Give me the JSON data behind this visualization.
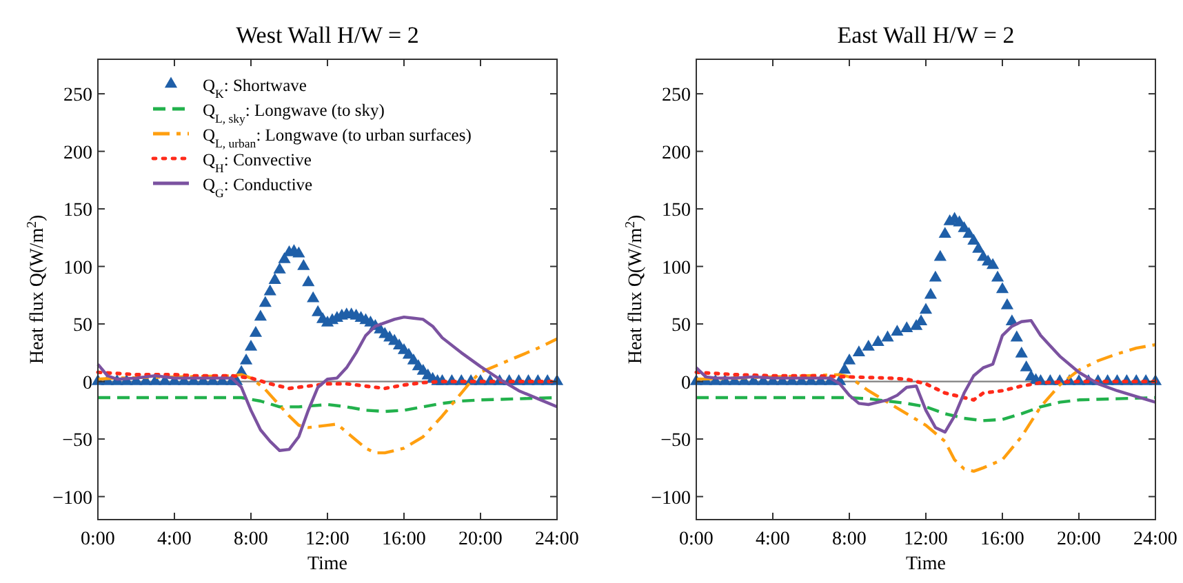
{
  "chart_data": [
    {
      "type": "line",
      "title": "West Wall H/W = 2",
      "xlabel": "Time",
      "ylabel": "Heat flux Q(W/m$^{2}$)",
      "xlim": [
        0,
        24
      ],
      "ylim": [
        -120,
        280
      ],
      "xticks": [
        {
          "value": 0,
          "label": "0:00"
        },
        {
          "value": 4,
          "label": "4:00"
        },
        {
          "value": 8,
          "label": "8:00"
        },
        {
          "value": 12,
          "label": "12:00"
        },
        {
          "value": 16,
          "label": "16:00"
        },
        {
          "value": 20,
          "label": "20:00"
        },
        {
          "value": 24,
          "label": "24:00"
        }
      ],
      "yticks": [
        -100,
        -50,
        0,
        50,
        100,
        150,
        200,
        250
      ],
      "grid": false,
      "legend": "top",
      "ref_lines": [
        {
          "axis": "y",
          "value": 0,
          "color": "#808080"
        }
      ],
      "series": [
        {
          "name": "Q$_{K}$: Shortwave",
          "type": "scatter",
          "marker": "triangle",
          "color": "#1f5fa8",
          "x": [
            0,
            0.5,
            1,
            1.5,
            2,
            2.5,
            3,
            3.5,
            4,
            4.5,
            5,
            5.5,
            6,
            6.5,
            7,
            7.25,
            7.5,
            7.75,
            8,
            8.25,
            8.5,
            8.75,
            9,
            9.25,
            9.5,
            9.75,
            10,
            10.25,
            10.5,
            10.75,
            11,
            11.25,
            11.5,
            11.75,
            12,
            12.25,
            12.5,
            12.75,
            13,
            13.25,
            13.5,
            13.75,
            14,
            14.25,
            14.5,
            14.75,
            15,
            15.25,
            15.5,
            15.75,
            16,
            16.25,
            16.5,
            16.75,
            17,
            17.25,
            17.5,
            17.75,
            18,
            18.5,
            19,
            19.5,
            20,
            20.5,
            21,
            21.5,
            22,
            22.5,
            23,
            23.5,
            24
          ],
          "values": [
            0,
            0,
            0,
            0,
            0,
            0,
            0,
            0,
            0,
            0,
            0,
            0,
            0,
            0,
            0,
            0,
            8,
            18,
            30,
            42,
            56,
            68,
            78,
            88,
            97,
            106,
            112,
            113,
            111,
            100,
            86,
            72,
            60,
            54,
            51,
            53,
            55,
            57,
            58,
            58,
            57,
            55,
            53,
            51,
            48,
            45,
            41,
            38,
            35,
            31,
            27,
            23,
            18,
            13,
            9,
            5,
            2,
            0,
            0,
            0,
            0,
            0,
            0,
            0,
            0,
            0,
            0,
            0,
            0,
            0,
            0
          ]
        },
        {
          "name": "Q$_{L, sky}$: Longwave (to sky)",
          "line_style": "dashed",
          "color": "#22b14c",
          "x": [
            0,
            7.5,
            8.5,
            9.5,
            10.5,
            12,
            13,
            14,
            15,
            16,
            17,
            18,
            19,
            20,
            22,
            24
          ],
          "values": [
            -14,
            -14,
            -17,
            -22,
            -22,
            -20,
            -22,
            -25,
            -26,
            -25,
            -22,
            -19,
            -17,
            -16,
            -15,
            -14
          ]
        },
        {
          "name": "Q$_{L, urban}$: Longwave (to urban surfaces)",
          "line_style": "dashdot",
          "color": "#ff9f0f",
          "x": [
            0,
            1,
            4,
            7,
            7.5,
            8,
            8.7,
            10,
            10.5,
            11,
            12,
            12.5,
            13,
            14,
            14.5,
            15,
            16,
            17,
            18,
            19,
            19.5,
            20,
            21,
            22,
            23,
            24
          ],
          "values": [
            2,
            3,
            4,
            5,
            6,
            3,
            -6,
            -30,
            -38,
            -40,
            -38,
            -37,
            -44,
            -58,
            -62,
            -62,
            -58,
            -48,
            -30,
            -10,
            0,
            8,
            15,
            22,
            29,
            37
          ]
        },
        {
          "name": "Q$_{H}$: Convective",
          "line_style": "dotted",
          "color": "#ff2a1a",
          "x": [
            0,
            1,
            2,
            3,
            4,
            5,
            6,
            7,
            8,
            9,
            10,
            11,
            12,
            13,
            14,
            15,
            16,
            17,
            18,
            20,
            24
          ],
          "values": [
            8,
            7,
            6,
            6,
            6,
            5,
            5,
            5,
            3,
            -2,
            -6,
            -4,
            -2,
            -2,
            -4,
            -6,
            -3,
            -1,
            0,
            0,
            0
          ]
        },
        {
          "name": "Q$_{G}$: Conductive",
          "line_style": "solid",
          "color": "#7b52a0",
          "x": [
            0,
            0.5,
            1,
            2,
            3,
            4,
            5,
            6,
            7,
            7.5,
            8,
            8.5,
            9,
            9.5,
            10,
            10.5,
            11,
            11.5,
            12,
            12.5,
            13,
            13.5,
            14,
            14.5,
            15,
            15.5,
            16,
            16.5,
            17,
            17.5,
            18,
            19,
            20,
            21,
            22,
            23,
            24
          ],
          "values": [
            15,
            5,
            2,
            3,
            5,
            3,
            3,
            3,
            3,
            -5,
            -25,
            -42,
            -52,
            -60,
            -59,
            -48,
            -25,
            -5,
            2,
            3,
            12,
            25,
            40,
            48,
            51,
            54,
            56,
            55,
            54,
            48,
            38,
            25,
            13,
            2,
            -8,
            -15,
            -22
          ]
        }
      ]
    },
    {
      "type": "line",
      "title": "East Wall H/W = 2",
      "xlabel": "Time",
      "ylabel": "Heat flux Q(W/m$^{2}$)",
      "xlim": [
        0,
        24
      ],
      "ylim": [
        -120,
        280
      ],
      "xticks": [
        {
          "value": 0,
          "label": "0:00"
        },
        {
          "value": 4,
          "label": "4:00"
        },
        {
          "value": 8,
          "label": "8:00"
        },
        {
          "value": 12,
          "label": "12:00"
        },
        {
          "value": 16,
          "label": "16:00"
        },
        {
          "value": 20,
          "label": "20:00"
        },
        {
          "value": 24,
          "label": "24:00"
        }
      ],
      "yticks": [
        -100,
        -50,
        0,
        50,
        100,
        150,
        200,
        250
      ],
      "grid": false,
      "ref_lines": [
        {
          "axis": "y",
          "value": 0,
          "color": "#808080"
        }
      ],
      "series": [
        {
          "type": "scatter",
          "marker": "triangle",
          "color": "#1f5fa8",
          "x": [
            0,
            0.5,
            1,
            1.5,
            2,
            2.5,
            3,
            3.5,
            4,
            4.5,
            5,
            5.5,
            6,
            6.5,
            7,
            7.5,
            7.75,
            8,
            8.5,
            9,
            9.5,
            10,
            10.5,
            11,
            11.5,
            11.75,
            12,
            12.25,
            12.5,
            12.75,
            13,
            13.25,
            13.5,
            13.75,
            14,
            14.25,
            14.5,
            14.75,
            15,
            15.25,
            15.5,
            15.75,
            16,
            16.25,
            16.5,
            16.75,
            17,
            17.25,
            17.5,
            17.75,
            18,
            18.5,
            19,
            19.5,
            20,
            20.5,
            21,
            21.5,
            22,
            22.5,
            23,
            23.5,
            24
          ],
          "values": [
            0,
            0,
            0,
            0,
            0,
            0,
            0,
            0,
            0,
            0,
            0,
            0,
            0,
            0,
            0,
            0,
            10,
            18,
            25,
            30,
            34,
            38,
            43,
            46,
            48,
            52,
            62,
            75,
            90,
            108,
            128,
            139,
            141,
            138,
            133,
            128,
            122,
            115,
            108,
            104,
            101,
            90,
            80,
            66,
            52,
            38,
            24,
            12,
            4,
            1,
            0,
            0,
            0,
            0,
            0,
            0,
            0,
            0,
            0,
            0,
            0,
            0,
            0
          ]
        },
        {
          "line_style": "dashed",
          "color": "#22b14c",
          "x": [
            0,
            8,
            9,
            10,
            11,
            12,
            13,
            14,
            15,
            16,
            17,
            18,
            19,
            20,
            22,
            24
          ],
          "values": [
            -14,
            -14,
            -15,
            -17,
            -19,
            -22,
            -28,
            -32,
            -34,
            -33,
            -28,
            -22,
            -18,
            -16,
            -15,
            -14
          ]
        },
        {
          "line_style": "dashdot",
          "color": "#ff9f0f",
          "x": [
            0,
            4,
            7.5,
            8,
            8.5,
            9,
            10,
            11,
            12,
            13,
            13.5,
            14,
            14.5,
            15,
            16,
            17,
            18,
            19,
            20,
            21,
            22,
            23,
            24
          ],
          "values": [
            2,
            4,
            6,
            4,
            -2,
            -8,
            -18,
            -28,
            -38,
            -52,
            -68,
            -76,
            -78,
            -75,
            -68,
            -48,
            -22,
            -3,
            10,
            18,
            24,
            29,
            32
          ]
        },
        {
          "line_style": "dotted",
          "color": "#ff2a1a",
          "x": [
            0,
            1,
            2,
            4,
            6,
            8,
            10,
            11,
            12,
            13,
            14,
            14.5,
            15,
            16,
            17,
            18,
            20,
            24
          ],
          "values": [
            8,
            7,
            6,
            5,
            5,
            4,
            3,
            2,
            -2,
            -10,
            -14,
            -16,
            -10,
            -8,
            -4,
            -1,
            0,
            0
          ]
        },
        {
          "line_style": "solid",
          "color": "#7b52a0",
          "x": [
            0,
            0.5,
            1,
            2,
            3,
            4,
            5,
            6,
            7,
            7.5,
            8,
            8.5,
            9,
            10,
            10.5,
            11,
            11.5,
            12,
            12.5,
            13,
            13.5,
            14,
            14.5,
            15,
            15.5,
            16,
            16.5,
            17,
            17.5,
            18,
            19,
            20,
            21,
            22,
            23,
            24
          ],
          "values": [
            12,
            4,
            3,
            3,
            4,
            3,
            3,
            3,
            3,
            -2,
            -12,
            -19,
            -20,
            -16,
            -12,
            -5,
            -4,
            -25,
            -40,
            -44,
            -30,
            -10,
            5,
            12,
            15,
            40,
            48,
            52,
            53,
            40,
            22,
            8,
            -2,
            -8,
            -13,
            -18
          ]
        }
      ]
    }
  ]
}
